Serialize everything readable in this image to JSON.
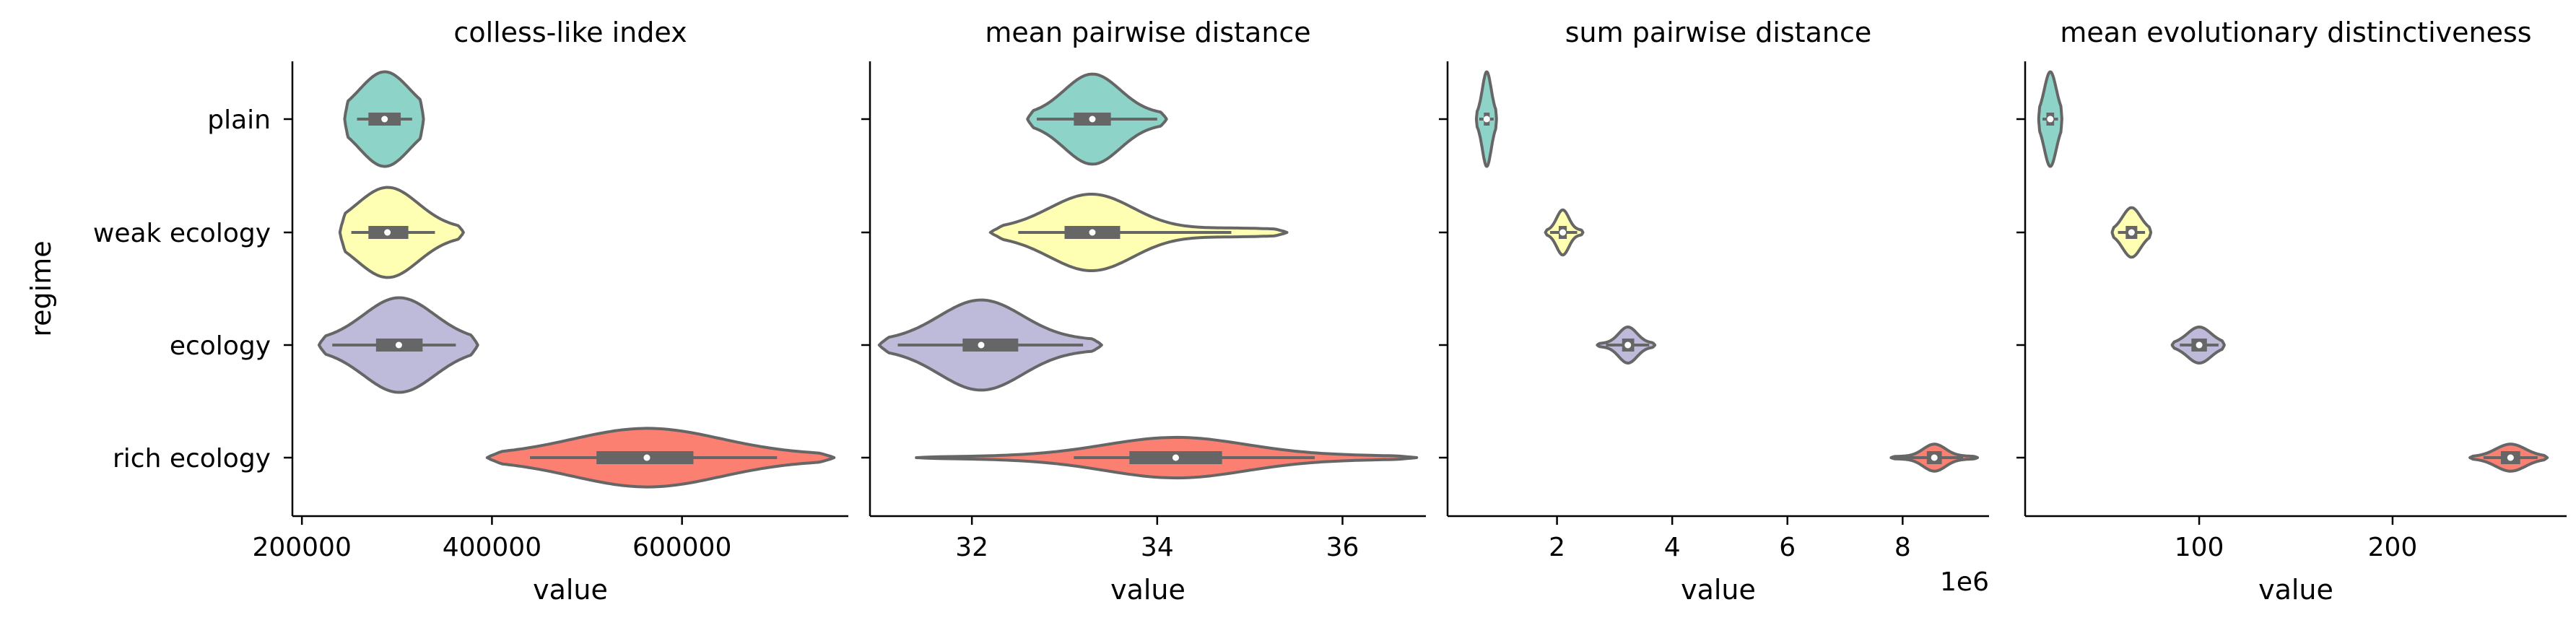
{
  "colors": {
    "plain": "#8dd3c7",
    "weak ecology": "#ffffb3",
    "ecology": "#bebada",
    "rich ecology": "#fb8072",
    "outline": "#666666",
    "axis": "#000000"
  },
  "chart_data": [
    {
      "type": "violin",
      "title": "colless-like index",
      "xlabel": "value",
      "ylabel": "regime",
      "categories": [
        "plain",
        "weak ecology",
        "ecology",
        "rich ecology"
      ],
      "xlim": [
        190000,
        775000
      ],
      "xticks": [
        200000,
        400000,
        600000
      ],
      "xtick_labels": [
        "200000",
        "400000",
        "600000"
      ],
      "offset_label": "",
      "series": [
        {
          "category": "plain",
          "min": 245000,
          "q1": 270000,
          "median": 287000,
          "q3": 304000,
          "max": 328000,
          "whisker": [
            258000,
            316000
          ],
          "hw": 0.42
        },
        {
          "category": "weak ecology",
          "min": 240000,
          "q1": 270000,
          "median": 290000,
          "q3": 312000,
          "max": 370000,
          "whisker": [
            252000,
            340000
          ],
          "hw": 0.4
        },
        {
          "category": "ecology",
          "min": 218000,
          "q1": 278000,
          "median": 302000,
          "q3": 327000,
          "max": 385000,
          "whisker": [
            232000,
            362000
          ],
          "hw": 0.42
        },
        {
          "category": "rich ecology",
          "min": 395000,
          "q1": 510000,
          "median": 563000,
          "q3": 612000,
          "max": 760000,
          "whisker": [
            440000,
            700000
          ],
          "hw": 0.26
        }
      ]
    },
    {
      "type": "violin",
      "title": "mean pairwise distance",
      "xlabel": "value",
      "ylabel": "",
      "categories": [
        "plain",
        "weak ecology",
        "ecology",
        "rich ecology"
      ],
      "xlim": [
        30.9,
        36.9
      ],
      "xticks": [
        32,
        34,
        36
      ],
      "xtick_labels": [
        "32",
        "34",
        "36"
      ],
      "offset_label": "",
      "series": [
        {
          "category": "plain",
          "min": 32.6,
          "q1": 33.1,
          "median": 33.3,
          "q3": 33.5,
          "max": 34.1,
          "whisker": [
            32.7,
            34.0
          ],
          "hw": 0.4
        },
        {
          "category": "weak ecology",
          "min": 32.2,
          "q1": 33.0,
          "median": 33.3,
          "q3": 33.6,
          "max": 35.4,
          "whisker": [
            32.5,
            34.8
          ],
          "hw": 0.34
        },
        {
          "category": "ecology",
          "min": 31.0,
          "q1": 31.9,
          "median": 32.1,
          "q3": 32.5,
          "max": 33.4,
          "whisker": [
            31.2,
            33.2
          ],
          "hw": 0.4
        },
        {
          "category": "rich ecology",
          "min": 31.4,
          "q1": 33.7,
          "median": 34.2,
          "q3": 34.7,
          "max": 36.8,
          "whisker": [
            33.1,
            35.7
          ],
          "hw": 0.18
        }
      ]
    },
    {
      "type": "violin",
      "title": "sum pairwise distance",
      "xlabel": "value",
      "ylabel": "",
      "categories": [
        "plain",
        "weak ecology",
        "ecology",
        "rich ecology"
      ],
      "xlim": [
        0.1,
        9.5
      ],
      "xticks": [
        2,
        4,
        6,
        8
      ],
      "xtick_labels": [
        "2",
        "4",
        "6",
        "8"
      ],
      "offset_label": "1e6",
      "series": [
        {
          "category": "plain",
          "min": 0.6,
          "q1": 0.73,
          "median": 0.78,
          "q3": 0.83,
          "max": 0.95,
          "whisker": [
            0.65,
            0.9
          ],
          "hw": 0.42
        },
        {
          "category": "weak ecology",
          "min": 1.8,
          "q1": 2.03,
          "median": 2.1,
          "q3": 2.17,
          "max": 2.45,
          "whisker": [
            1.88,
            2.35
          ],
          "hw": 0.2
        },
        {
          "category": "ecology",
          "min": 2.7,
          "q1": 3.13,
          "median": 3.23,
          "q3": 3.34,
          "max": 3.7,
          "whisker": [
            2.85,
            3.6
          ],
          "hw": 0.16
        },
        {
          "category": "rich ecology",
          "min": 7.8,
          "q1": 8.42,
          "median": 8.55,
          "q3": 8.68,
          "max": 9.3,
          "whisker": [
            8.0,
            9.05
          ],
          "hw": 0.12
        }
      ]
    },
    {
      "type": "violin",
      "title": "mean evolutionary distinctiveness",
      "xlabel": "value",
      "ylabel": "",
      "categories": [
        "plain",
        "weak ecology",
        "ecology",
        "rich ecology"
      ],
      "xlim": [
        10,
        290
      ],
      "xticks": [
        100,
        200
      ],
      "xtick_labels": [
        "100",
        "200"
      ],
      "offset_label": "",
      "series": [
        {
          "category": "plain",
          "min": 17,
          "q1": 21,
          "median": 23,
          "q3": 25,
          "max": 29,
          "whisker": [
            19,
            27
          ],
          "hw": 0.42
        },
        {
          "category": "weak ecology",
          "min": 55,
          "q1": 62,
          "median": 65,
          "q3": 68,
          "max": 75,
          "whisker": [
            58,
            72
          ],
          "hw": 0.22
        },
        {
          "category": "ecology",
          "min": 86,
          "q1": 96,
          "median": 100,
          "q3": 104,
          "max": 113,
          "whisker": [
            90,
            110
          ],
          "hw": 0.16
        },
        {
          "category": "rich ecology",
          "min": 240,
          "q1": 256,
          "median": 261,
          "q3": 266,
          "max": 280,
          "whisker": [
            247,
            275
          ],
          "hw": 0.12
        }
      ]
    }
  ]
}
